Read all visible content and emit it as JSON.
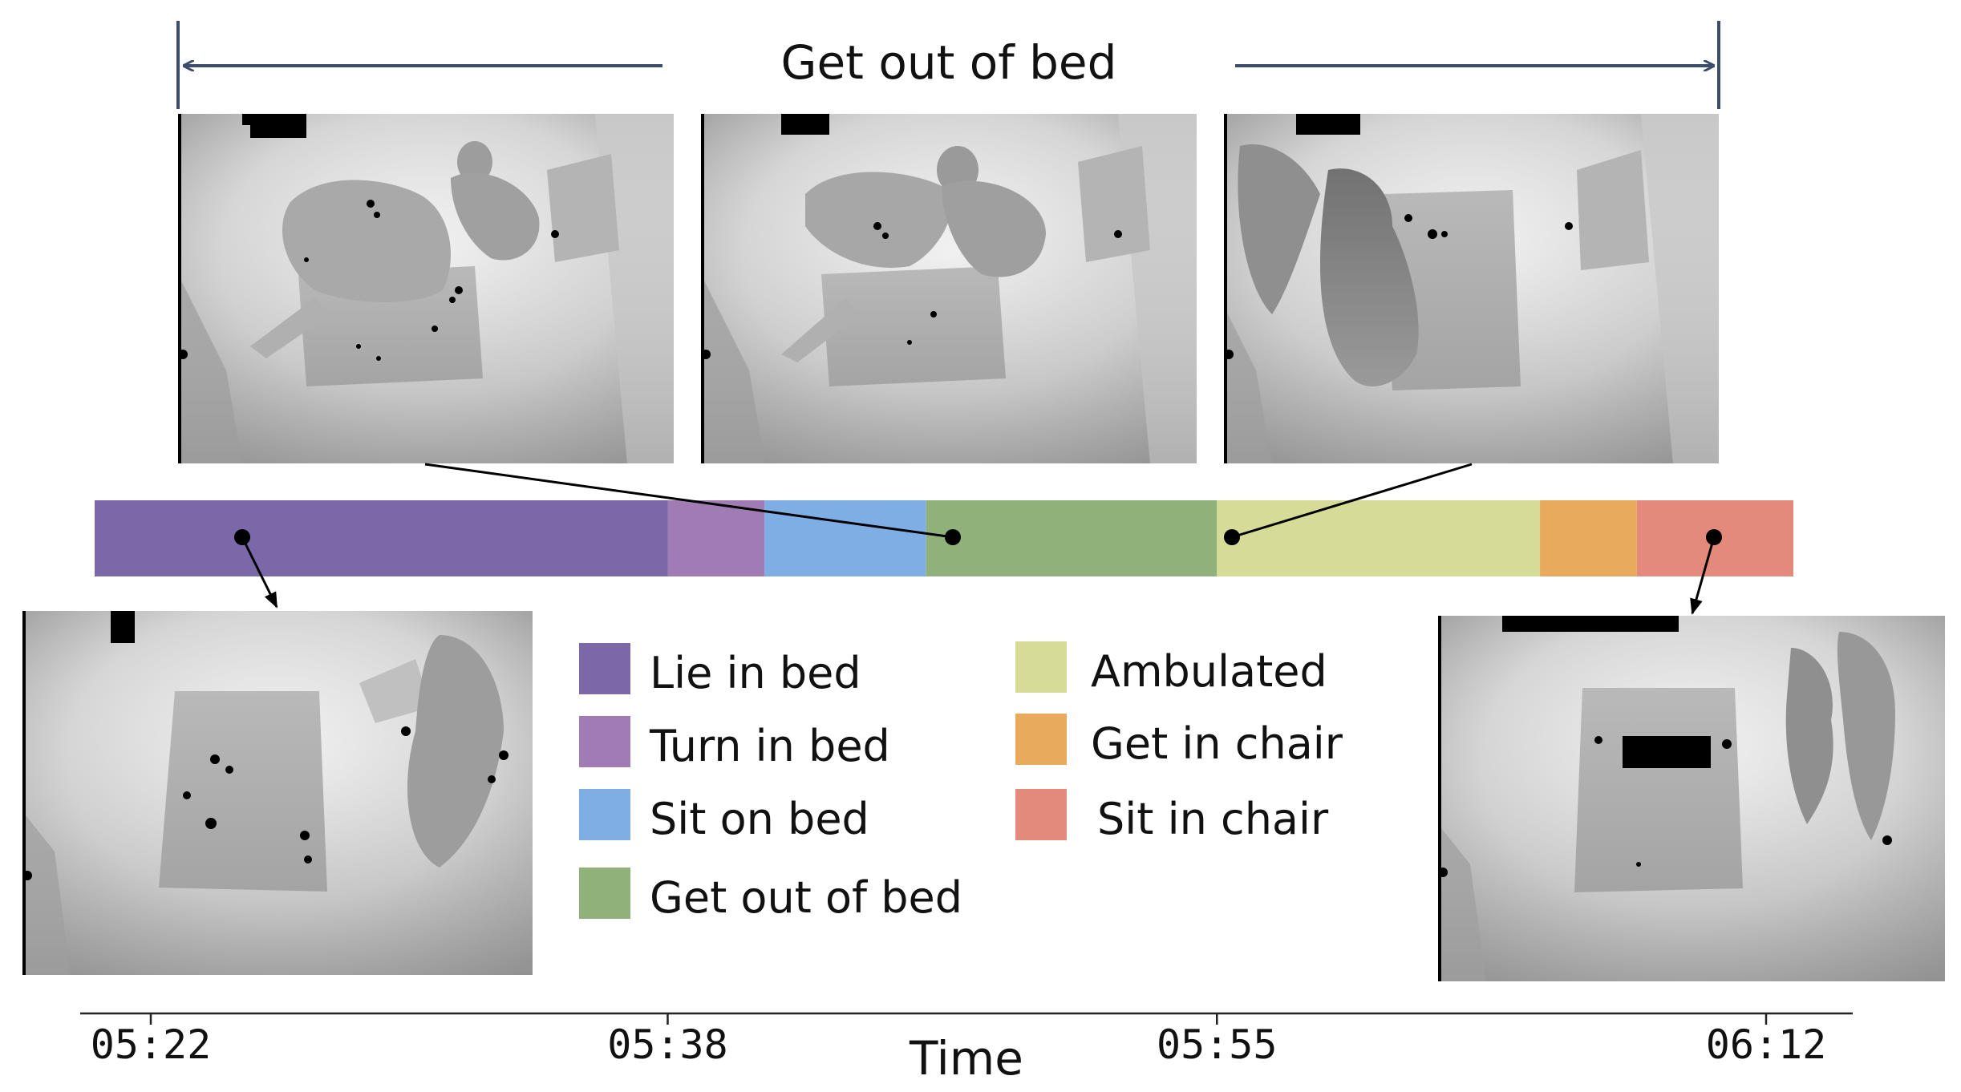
{
  "title": "Get out of bed",
  "legend": [
    {
      "label": "Lie in bed",
      "color": "#7b68a8"
    },
    {
      "label": "Turn in bed",
      "color": "#a17cb4"
    },
    {
      "label": "Sit on bed",
      "color": "#7eaee3"
    },
    {
      "label": "Get out of bed",
      "color": "#90b27a"
    },
    {
      "label": "Ambulated",
      "color": "#d6db98"
    },
    {
      "label": "Get in chair",
      "color": "#e8ab5e"
    },
    {
      "label": "Sit in chair",
      "color": "#e48a7d"
    }
  ],
  "timeline": [
    {
      "activity": "Lie in bed",
      "start": "05:20",
      "end": "05:38"
    },
    {
      "activity": "Turn in bed",
      "start": "05:38",
      "end": "05:41"
    },
    {
      "activity": "Sit on bed",
      "start": "05:41",
      "end": "05:46"
    },
    {
      "activity": "Get out of bed",
      "start": "05:46",
      "end": "05:55"
    },
    {
      "activity": "Ambulated",
      "start": "05:55",
      "end": "06:05"
    },
    {
      "activity": "Get in chair",
      "start": "06:05",
      "end": "06:08"
    },
    {
      "activity": "Sit in chair",
      "start": "06:08",
      "end": "06:12"
    }
  ],
  "x_axis": {
    "label": "Time",
    "ticks": [
      "05:22",
      "05:38",
      "05:55",
      "06:12"
    ]
  },
  "frames": [
    {
      "name": "top-frame-1",
      "kind": "depth image",
      "time": "05:46"
    },
    {
      "name": "top-frame-2",
      "kind": "depth image",
      "time": "05:50"
    },
    {
      "name": "top-frame-3",
      "kind": "depth image",
      "time": "05:55"
    },
    {
      "name": "bottom-left-frame",
      "kind": "depth image",
      "time": "05:25"
    },
    {
      "name": "bottom-right-frame",
      "kind": "depth image",
      "time": "06:10"
    }
  ],
  "colors": {
    "arrow": "#3c4d6b",
    "axis": "#222222",
    "connector": "#000000"
  }
}
